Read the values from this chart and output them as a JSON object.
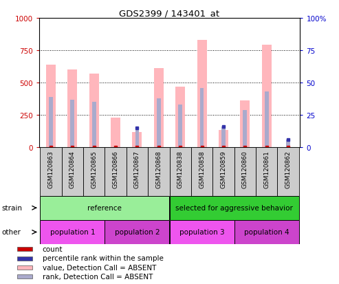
{
  "title": "GDS2399 / 143401_at",
  "samples": [
    "GSM120863",
    "GSM120864",
    "GSM120865",
    "GSM120866",
    "GSM120867",
    "GSM120868",
    "GSM120838",
    "GSM120858",
    "GSM120859",
    "GSM120860",
    "GSM120861",
    "GSM120862"
  ],
  "pink_bars": [
    640,
    600,
    570,
    230,
    120,
    610,
    470,
    830,
    135,
    360,
    790,
    0
  ],
  "blue_bars_pct": [
    39,
    37,
    35,
    0,
    15,
    38,
    33,
    46,
    16,
    29,
    43,
    6
  ],
  "has_red_dot": [
    true,
    true,
    true,
    true,
    true,
    true,
    true,
    true,
    true,
    true,
    true,
    true
  ],
  "has_blue_dot": [
    false,
    false,
    false,
    false,
    true,
    false,
    false,
    false,
    true,
    false,
    false,
    true
  ],
  "left_ylim": [
    0,
    1000
  ],
  "right_ylim": [
    0,
    100
  ],
  "left_yticks": [
    0,
    250,
    500,
    750,
    1000
  ],
  "right_yticks": [
    0,
    25,
    50,
    75,
    100
  ],
  "left_ytick_labels": [
    "0",
    "250",
    "500",
    "750",
    "1000"
  ],
  "right_ytick_labels": [
    "0",
    "25",
    "50",
    "75",
    "100%"
  ],
  "strain_groups": [
    {
      "label": "reference",
      "start": 0,
      "end": 6,
      "color": "#99EE99"
    },
    {
      "label": "selected for aggressive behavior",
      "start": 6,
      "end": 12,
      "color": "#33CC33"
    }
  ],
  "other_groups": [
    {
      "label": "population 1",
      "start": 0,
      "end": 3,
      "color": "#EE55EE"
    },
    {
      "label": "population 2",
      "start": 3,
      "end": 6,
      "color": "#CC44CC"
    },
    {
      "label": "population 3",
      "start": 6,
      "end": 9,
      "color": "#EE55EE"
    },
    {
      "label": "population 4",
      "start": 9,
      "end": 12,
      "color": "#CC44CC"
    }
  ],
  "pink_color": "#FFB6BC",
  "blue_color": "#AAAACC",
  "red_dot_color": "#CC0000",
  "blue_dot_color": "#3333AA",
  "left_axis_color": "#CC0000",
  "right_axis_color": "#0000CC",
  "strain_label": "strain",
  "other_label": "other",
  "bg_color": "#ffffff",
  "legend_labels": [
    "count",
    "percentile rank within the sample",
    "value, Detection Call = ABSENT",
    "rank, Detection Call = ABSENT"
  ],
  "legend_colors": [
    "#CC0000",
    "#3333AA",
    "#FFB6BC",
    "#AAAACC"
  ]
}
